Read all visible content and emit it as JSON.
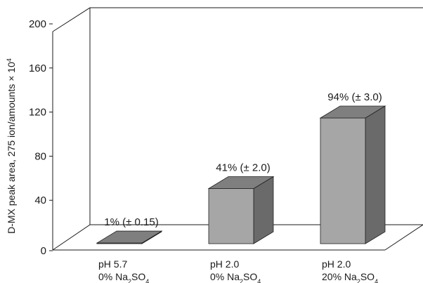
{
  "chart_data": {
    "type": "bar",
    "categories": [
      {
        "line1": "pH 5.7",
        "line2_prefix": "0% Na",
        "sub1": "2",
        "mid": "SO",
        "sub2": "4"
      },
      {
        "line1": "pH 2.0",
        "line2_prefix": "0% Na",
        "sub1": "2",
        "mid": "SO",
        "sub2": "4"
      },
      {
        "line1": "pH 2.0",
        "line2_prefix": "20% Na",
        "sub1": "2",
        "mid": "SO",
        "sub2": "4"
      }
    ],
    "values": [
      0.6,
      50,
      114
    ],
    "data_labels": [
      "1% (± 0.15)",
      "41% (± 2.0)",
      "94% (± 3.0)"
    ],
    "ylabel": {
      "text": "D-MX peak area, 275 ion/amounts × 10",
      "sup": "4"
    },
    "yticks": [
      "0",
      "40",
      "80",
      "120",
      "160",
      "200"
    ],
    "ylim": [
      0,
      200
    ],
    "grid": false,
    "bar_colors": {
      "front": "#a6a6a6",
      "top": "#7f7f7f",
      "side": "#6a6a6a"
    }
  }
}
